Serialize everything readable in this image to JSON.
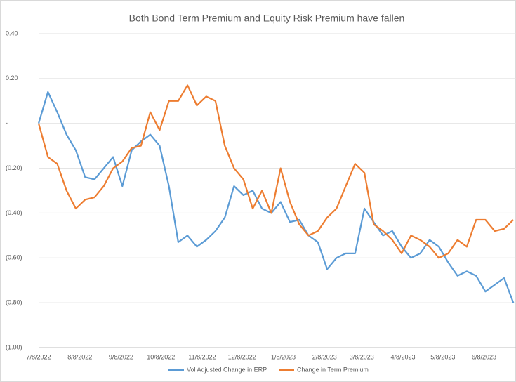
{
  "chart_data": {
    "type": "line",
    "title": "Both Bond Term Premium and Equity Risk Premium have fallen",
    "x": [
      "7/8/2022",
      "7/15/2022",
      "7/22/2022",
      "7/29/2022",
      "8/5/2022",
      "8/12/2022",
      "8/19/2022",
      "8/26/2022",
      "9/2/2022",
      "9/9/2022",
      "9/16/2022",
      "9/23/2022",
      "9/30/2022",
      "10/7/2022",
      "10/14/2022",
      "10/21/2022",
      "10/28/2022",
      "11/4/2022",
      "11/11/2022",
      "11/18/2022",
      "11/25/2022",
      "12/2/2022",
      "12/9/2022",
      "12/16/2022",
      "12/23/2022",
      "12/30/2022",
      "1/6/2023",
      "1/13/2023",
      "1/20/2023",
      "1/27/2023",
      "2/3/2023",
      "2/10/2023",
      "2/17/2023",
      "2/24/2023",
      "3/3/2023",
      "3/10/2023",
      "3/17/2023",
      "3/24/2023",
      "3/31/2023",
      "4/7/2023",
      "4/14/2023",
      "4/21/2023",
      "4/28/2023",
      "5/5/2023",
      "5/12/2023",
      "5/19/2023",
      "5/26/2023",
      "6/2/2023",
      "6/9/2023",
      "6/16/2023",
      "6/23/2023",
      "6/30/2023"
    ],
    "series": [
      {
        "name": "Vol Adjusted Change in ERP",
        "color": "#5b9bd5",
        "values": [
          0,
          0.14,
          0.05,
          -0.05,
          -0.12,
          -0.24,
          -0.25,
          -0.2,
          -0.15,
          -0.28,
          -0.12,
          -0.08,
          -0.05,
          -0.1,
          -0.28,
          -0.53,
          -0.5,
          -0.55,
          -0.52,
          -0.48,
          -0.42,
          -0.28,
          -0.32,
          -0.3,
          -0.38,
          -0.4,
          -0.35,
          -0.44,
          -0.43,
          -0.5,
          -0.53,
          -0.65,
          -0.6,
          -0.58,
          -0.58,
          -0.38,
          -0.44,
          -0.5,
          -0.48,
          -0.55,
          -0.6,
          -0.58,
          -0.52,
          -0.55,
          -0.62,
          -0.68,
          -0.66,
          -0.68,
          -0.75,
          -0.72,
          -0.69,
          -0.8
        ]
      },
      {
        "name": "Change in Term Premium",
        "color": "#ed7d31",
        "values": [
          0,
          -0.15,
          -0.18,
          -0.3,
          -0.38,
          -0.34,
          -0.33,
          -0.28,
          -0.2,
          -0.17,
          -0.11,
          -0.1,
          0.05,
          -0.03,
          0.1,
          0.1,
          0.17,
          0.08,
          0.12,
          0.1,
          -0.1,
          -0.2,
          -0.25,
          -0.38,
          -0.3,
          -0.4,
          -0.2,
          -0.35,
          -0.45,
          -0.5,
          -0.48,
          -0.42,
          -0.38,
          -0.28,
          -0.18,
          -0.22,
          -0.45,
          -0.48,
          -0.52,
          -0.58,
          -0.5,
          -0.52,
          -0.55,
          -0.6,
          -0.58,
          -0.52,
          -0.55,
          -0.43,
          -0.43,
          -0.48,
          -0.47,
          -0.43
        ]
      }
    ],
    "xlim": [
      "7/8/2022",
      "7/2/2023"
    ],
    "xticks": [
      "7/8/2022",
      "8/8/2022",
      "9/8/2022",
      "10/8/2022",
      "11/8/2022",
      "12/8/2022",
      "1/8/2023",
      "2/8/2023",
      "3/8/2023",
      "4/8/2023",
      "5/8/2023",
      "6/8/2023"
    ],
    "ylim": [
      -1,
      0.4
    ],
    "yticks": [
      {
        "value": 0.4,
        "label": "0.40"
      },
      {
        "value": 0.2,
        "label": "0.20"
      },
      {
        "value": 0,
        "label": "-"
      },
      {
        "value": -0.2,
        "label": "(0.20)"
      },
      {
        "value": -0.4,
        "label": "(0.40)"
      },
      {
        "value": -0.6,
        "label": "(0.60)"
      },
      {
        "value": -0.8,
        "label": "(0.80)"
      },
      {
        "value": -1,
        "label": "(1.00)"
      }
    ],
    "grid": true,
    "legend": "bottom"
  }
}
